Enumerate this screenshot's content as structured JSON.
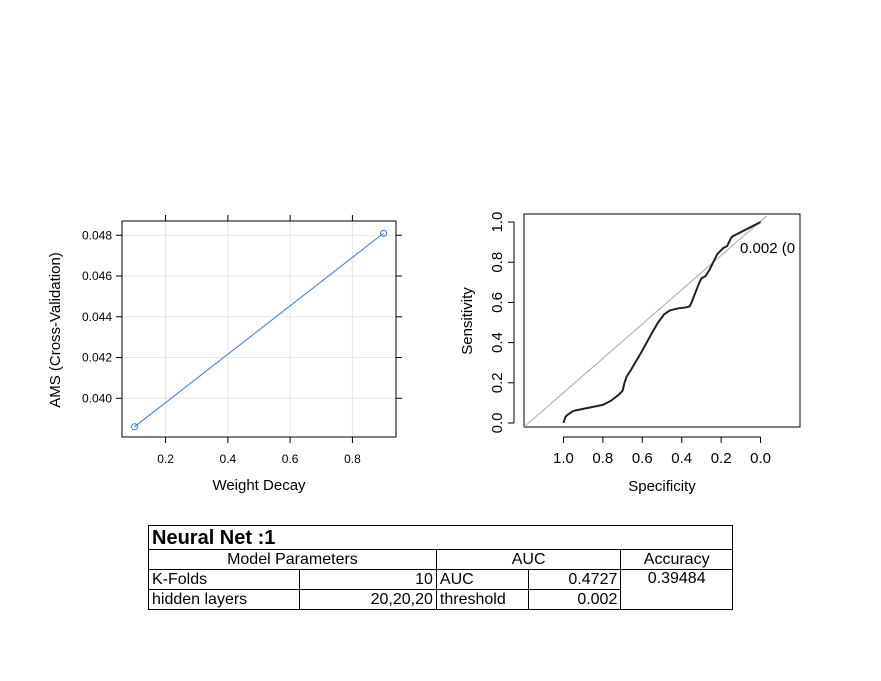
{
  "chart_data": [
    {
      "type": "line",
      "title": "",
      "xlabel": "Weight Decay",
      "ylabel": "AMS (Cross-Validation)",
      "x": [
        0.1,
        0.9
      ],
      "series": [
        {
          "values": [
            0.0386,
            0.0481
          ]
        }
      ],
      "xlim": [
        0.06,
        0.94
      ],
      "ylim": [
        0.0381,
        0.0487
      ],
      "xticks": [
        0.2,
        0.4,
        0.6,
        0.8
      ],
      "xtick_labels": [
        "0.2",
        "0.4",
        "0.6",
        "0.8"
      ],
      "yticks": [
        0.04,
        0.042,
        0.044,
        0.046,
        0.048
      ],
      "ytick_labels": [
        "0.040",
        "0.042",
        "0.044",
        "0.046",
        "0.048"
      ],
      "grid": true,
      "color": "#3a7ac6"
    },
    {
      "type": "line",
      "title": "",
      "xlabel": "Specificity",
      "ylabel": "Sensitivity",
      "x_reversed": true,
      "xlim": [
        1.2,
        -0.2
      ],
      "ylim": [
        -0.02,
        1.04
      ],
      "xticks": [
        1.0,
        0.8,
        0.6,
        0.4,
        0.2,
        0.0
      ],
      "xtick_labels": [
        "1.0",
        "0.8",
        "0.6",
        "0.4",
        "0.2",
        "0.0"
      ],
      "yticks": [
        0.0,
        0.2,
        0.4,
        0.6,
        0.8,
        1.0
      ],
      "ytick_labels": [
        "0.0",
        "0.2",
        "0.4",
        "0.6",
        "0.8",
        "1.0"
      ],
      "annotation": "0.002 (0",
      "reference_line_color": "#a8a8a8",
      "curve_color": "#222222",
      "roc": {
        "specificity": [
          1.0,
          0.99,
          0.98,
          0.95,
          0.9,
          0.85,
          0.8,
          0.76,
          0.72,
          0.7,
          0.69,
          0.68,
          0.66,
          0.6,
          0.55,
          0.52,
          0.49,
          0.46,
          0.42,
          0.38,
          0.36,
          0.35,
          0.33,
          0.31,
          0.3,
          0.28,
          0.26,
          0.24,
          0.22,
          0.21,
          0.2,
          0.19,
          0.17,
          0.16,
          0.15,
          0.14,
          0.12,
          0.1,
          0.08,
          0.06,
          0.04,
          0.02,
          0.0
        ],
        "sensitivity": [
          0.0,
          0.03,
          0.04,
          0.06,
          0.07,
          0.08,
          0.09,
          0.11,
          0.14,
          0.16,
          0.2,
          0.23,
          0.26,
          0.36,
          0.45,
          0.5,
          0.54,
          0.56,
          0.57,
          0.575,
          0.58,
          0.6,
          0.65,
          0.7,
          0.72,
          0.73,
          0.76,
          0.8,
          0.84,
          0.85,
          0.86,
          0.87,
          0.88,
          0.9,
          0.92,
          0.93,
          0.94,
          0.95,
          0.96,
          0.97,
          0.98,
          0.99,
          1.0
        ]
      }
    }
  ],
  "table": {
    "title": "Neural Net :1",
    "header_params": "Model Parameters",
    "header_auc": "AUC",
    "header_accuracy": "Accuracy",
    "rows": [
      {
        "param": "K-Folds",
        "param_value": "10",
        "metric": "AUC",
        "metric_value": "0.4727"
      },
      {
        "param": "hidden layers",
        "param_value": "20,20,20",
        "metric": "threshold",
        "metric_value": "0.002"
      }
    ],
    "accuracy": "0.39484"
  }
}
